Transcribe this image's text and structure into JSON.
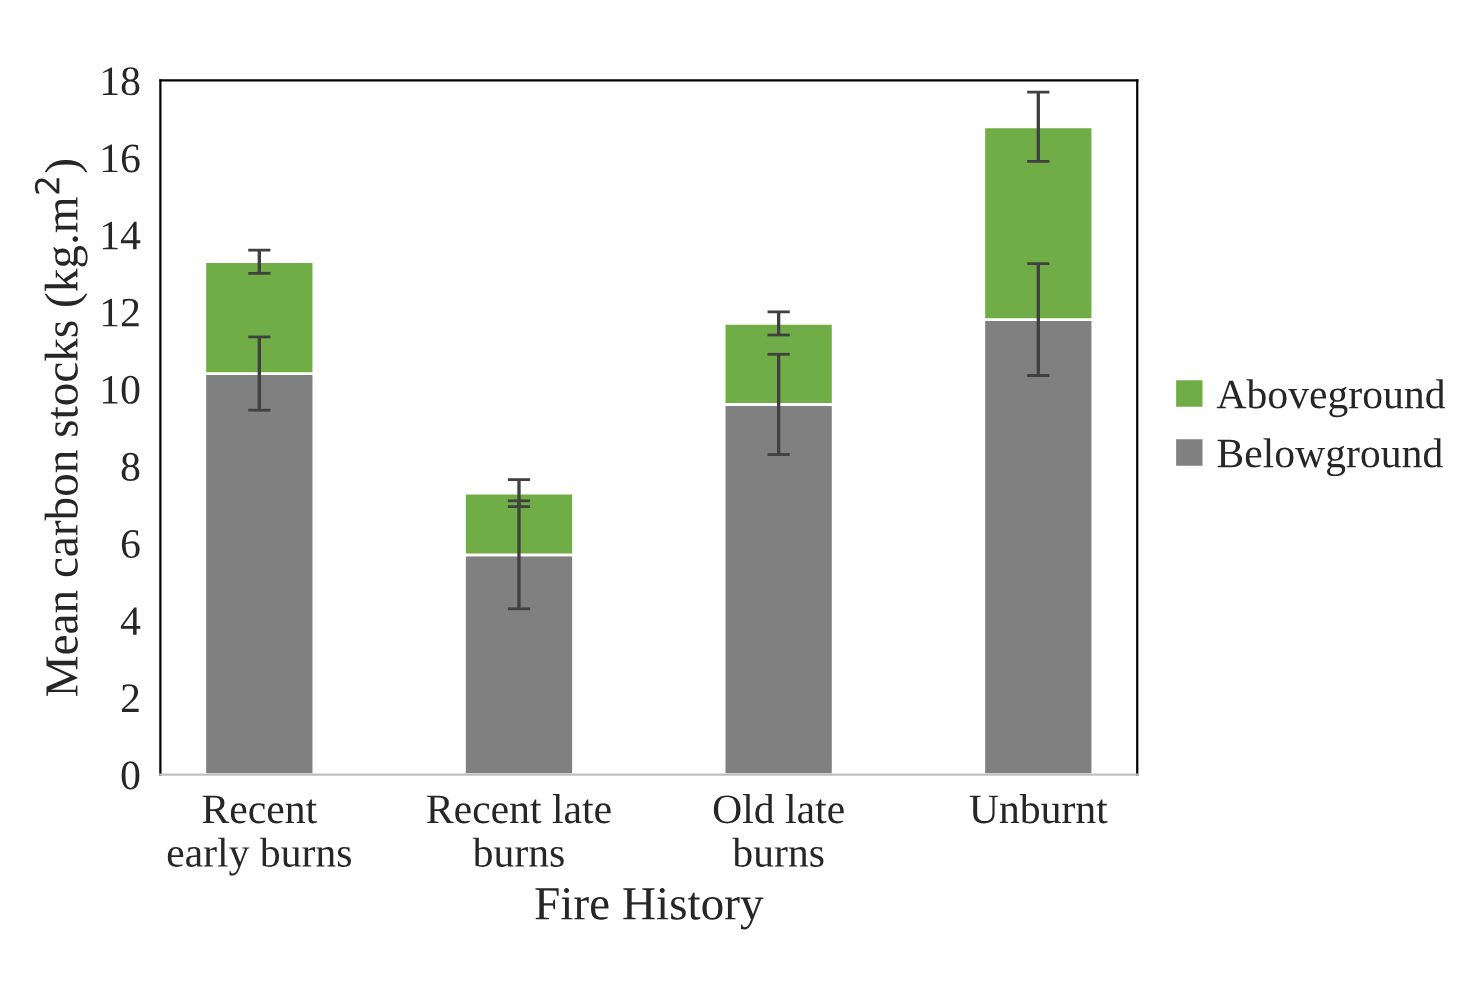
{
  "chart_data": {
    "type": "bar",
    "stacked": true,
    "xlabel": "Fire History",
    "ylabel": "Mean carbon stocks (kg.m$^{2}$)",
    "categories": [
      "Recent\nearly burns",
      "Recent late\nburns",
      "Old late\nburns",
      "Unburnt"
    ],
    "series": [
      {
        "name": "Belowground",
        "color": "#808080",
        "values": [
          10.4,
          5.7,
          9.6,
          11.8
        ],
        "errors": [
          0.95,
          1.4,
          1.3,
          1.45
        ]
      },
      {
        "name": "Aboveground",
        "color": "#70ad47",
        "values": [
          2.9,
          1.6,
          2.1,
          5.0
        ],
        "errors": [
          0.3,
          0.35,
          0.3,
          0.9
        ]
      }
    ],
    "ylim": [
      0,
      18
    ],
    "yticks": [
      0,
      2,
      4,
      6,
      8,
      10,
      12,
      14,
      16,
      18
    ],
    "grid": false,
    "legend": "right"
  }
}
